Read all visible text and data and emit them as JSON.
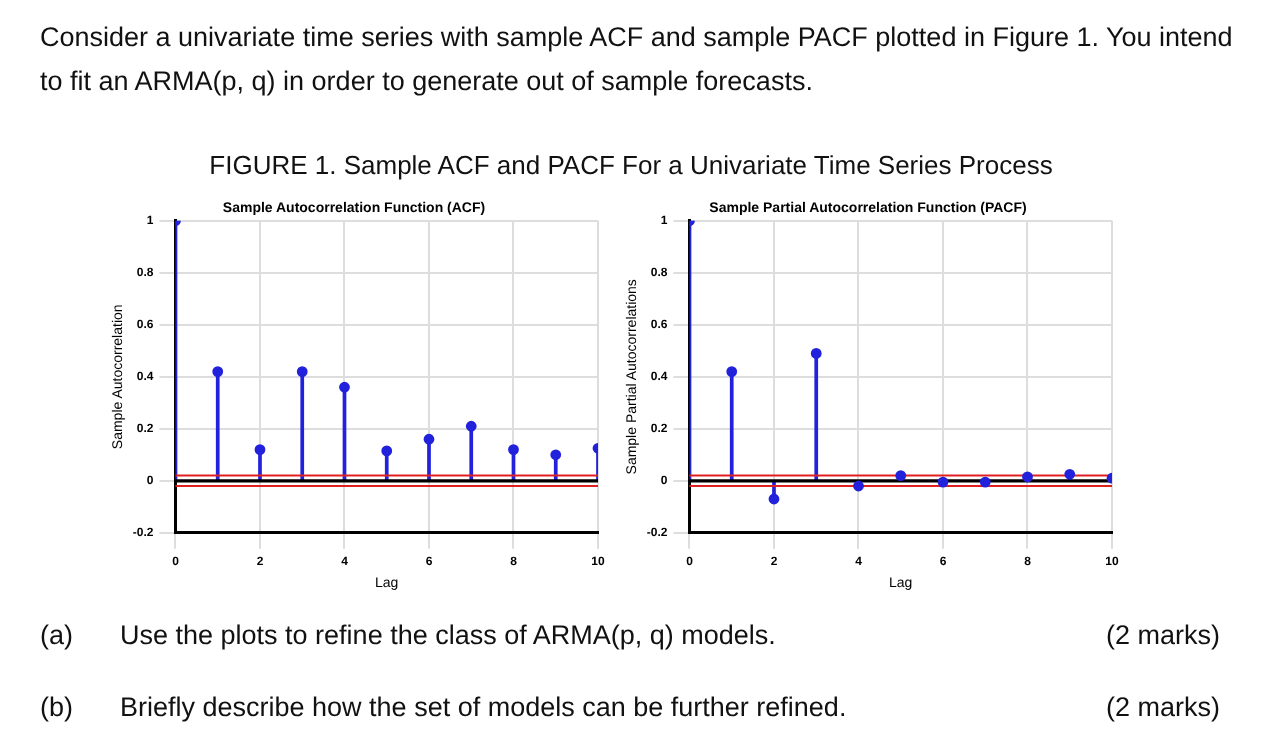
{
  "chart_data": [
    {
      "type": "lollipop",
      "title": "Sample Autocorrelation Function (ACF)",
      "xlabel": "Lag",
      "ylabel": "Sample Autocorrelation",
      "annotations": [
        "Consider a univariate time series with sample ACF and sample PACF plotted in Figure 1. You intend to fit an ARMA(p, q) in order to generate out of sample forecasts.",
        "FIGURE 1. Sample ACF and PACF For a Univariate Time Series Process"
      ],
      "x": [
        0,
        1,
        2,
        3,
        4,
        5,
        6,
        7,
        8,
        9,
        10
      ],
      "series": [
        {
          "color": "#2222dd",
          "values": [
            1,
            0.42,
            0.12,
            0.42,
            0.36,
            0.115,
            0.16,
            0.21,
            0.12,
            0.1,
            0.125
          ]
        }
      ],
      "xlim": [
        0,
        10
      ],
      "xticks": [
        0,
        2,
        4,
        6,
        8,
        10
      ],
      "ylim": [
        -0.2,
        1
      ],
      "yticks": [
        -0.2,
        0,
        0.2,
        0.4,
        0.6,
        0.8,
        1
      ],
      "grid": true,
      "marker": "circle",
      "ref_lines": [
        {
          "axis": "y",
          "value": 0,
          "color": "#000000"
        },
        {
          "axis": "y",
          "value": 0.02,
          "color": "#e02020"
        },
        {
          "axis": "y",
          "value": -0.02,
          "color": "#e02020"
        }
      ]
    },
    {
      "type": "lollipop",
      "title": "Sample Partial Autocorrelation Function (PACF)",
      "xlabel": "Lag",
      "ylabel": "Sample Partial Autocorrelations",
      "annotations": [
        "(a)",
        "Use the plots to refine the class of ARMA(p, q) models.",
        "(2 marks)",
        "(b)",
        "Briefly describe how the set of models can be further refined.",
        "(2 marks)"
      ],
      "x": [
        0,
        1,
        2,
        3,
        4,
        5,
        6,
        7,
        8,
        9,
        10
      ],
      "series": [
        {
          "color": "#2222dd",
          "values": [
            1,
            0.42,
            -0.07,
            0.49,
            -0.02,
            0.02,
            -0.005,
            -0.005,
            0.015,
            0.025,
            0.01
          ]
        }
      ],
      "xlim": [
        0,
        10
      ],
      "xticks": [
        0,
        2,
        4,
        6,
        8,
        10
      ],
      "ylim": [
        -0.2,
        1
      ],
      "yticks": [
        -0.2,
        0,
        0.2,
        0.4,
        0.6,
        0.8,
        1
      ],
      "grid": true,
      "marker": "circle",
      "ref_lines": [
        {
          "axis": "y",
          "value": 0,
          "color": "#000000"
        },
        {
          "axis": "y",
          "value": 0.02,
          "color": "#e02020"
        },
        {
          "axis": "y",
          "value": -0.02,
          "color": "#e02020"
        }
      ]
    }
  ]
}
